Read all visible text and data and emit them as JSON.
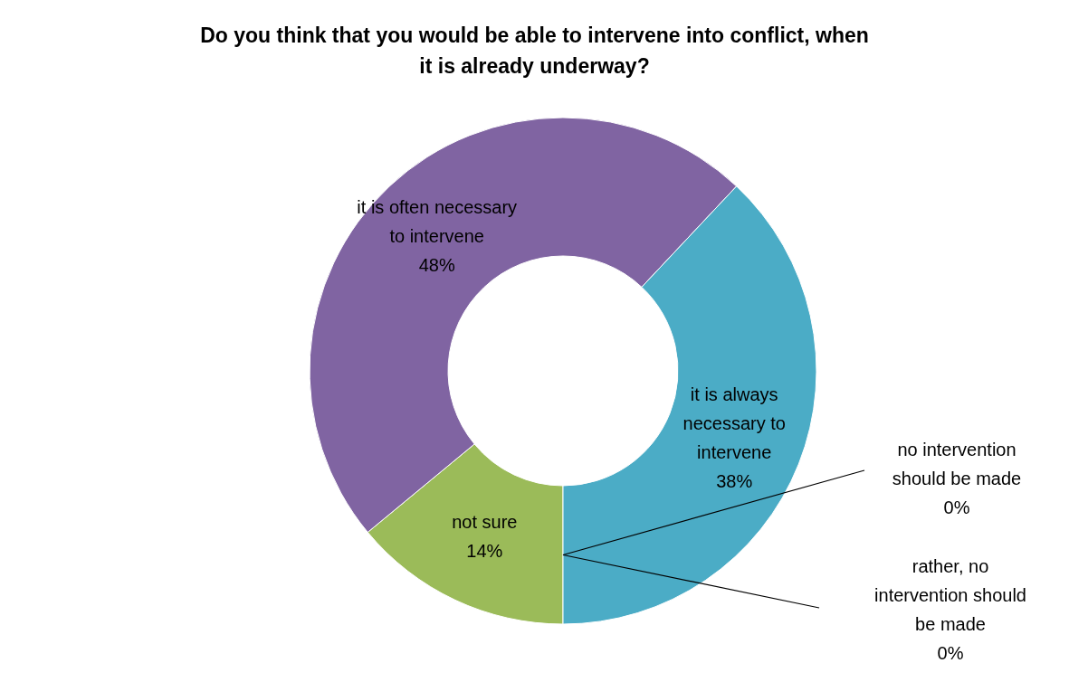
{
  "chart_data": {
    "type": "donut",
    "title": "Do you think that you would be able to intervene into conflict, when it is already underway?",
    "categories": [
      "no intervention should be made",
      "rather, no intervention should be made",
      "not sure",
      "it is often necessary to intervene",
      "it is always necessary to intervene"
    ],
    "values": [
      0,
      0,
      14,
      48,
      38
    ],
    "value_labels": [
      "0%",
      "0%",
      "14%",
      "48%",
      "38%"
    ],
    "colors": [
      "#4f81bd",
      "#c0504d",
      "#9bbb59",
      "#8064a2",
      "#4bacc6"
    ]
  }
}
